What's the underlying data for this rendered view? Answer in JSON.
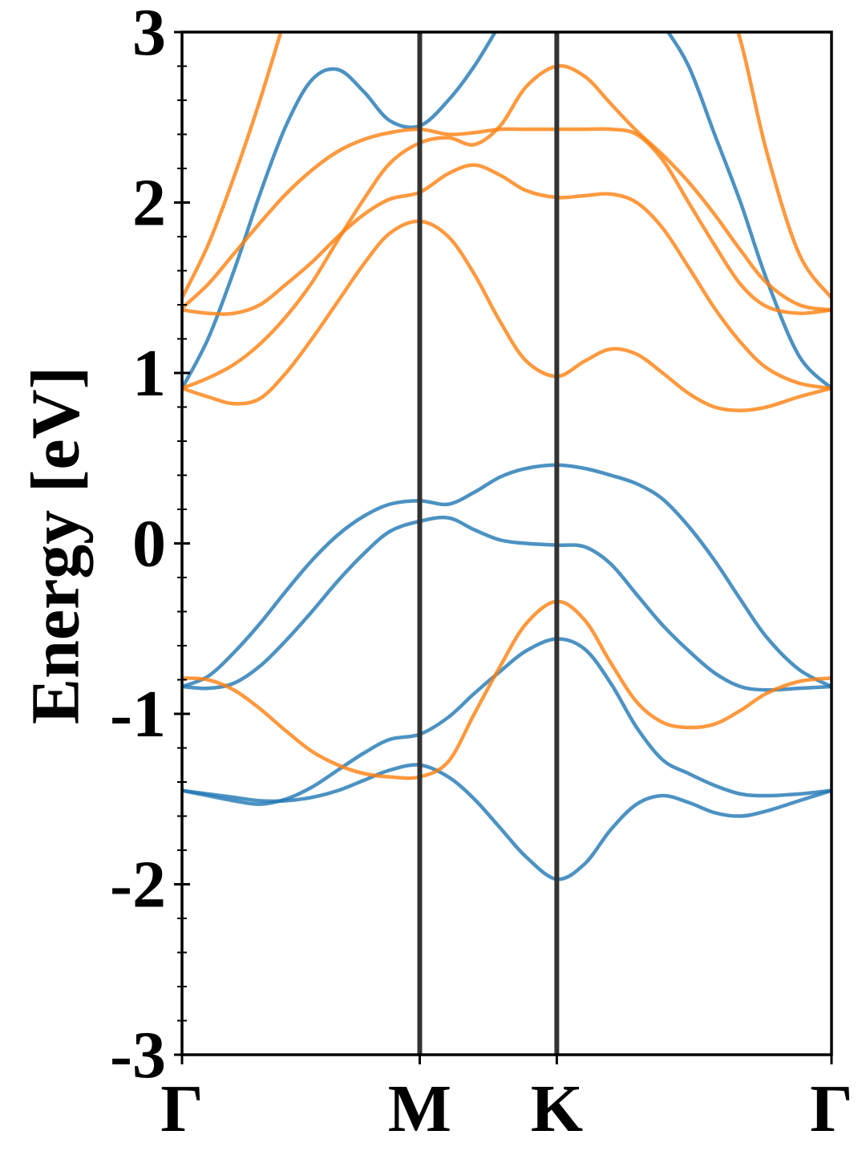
{
  "chart_data": {
    "type": "line",
    "ylabel": "Energy [eV]",
    "xlim": [
      0,
      1
    ],
    "xticks": [
      {
        "value": 0,
        "label": "Γ"
      },
      {
        "value": 0.366,
        "label": "M"
      },
      {
        "value": 0.577,
        "label": "K"
      },
      {
        "value": 1,
        "label": "Γ"
      }
    ],
    "ylim": [
      -3,
      3
    ],
    "yticks": [
      -3,
      -2,
      -1,
      0,
      1,
      2,
      3
    ],
    "yminorticks": [
      -2.8,
      -2.6,
      -2.4,
      -2.2,
      -1.8,
      -1.6,
      -1.4,
      -1.2,
      -0.8,
      -0.6,
      -0.4,
      -0.2,
      0.2,
      0.4,
      0.6,
      0.8,
      1.2,
      1.4,
      1.6,
      1.8,
      2.2,
      2.4,
      2.6,
      2.8
    ],
    "x": [
      0,
      0.04,
      0.08,
      0.12,
      0.16,
      0.2,
      0.24,
      0.28,
      0.32,
      0.366,
      0.41,
      0.45,
      0.49,
      0.53,
      0.577,
      0.62,
      0.66,
      0.7,
      0.74,
      0.78,
      0.82,
      0.86,
      0.9,
      0.95,
      1
    ],
    "series": [
      {
        "color": "#1f77b4",
        "values": [
          -1.45,
          -1.47,
          -1.49,
          -1.51,
          -1.51,
          -1.49,
          -1.45,
          -1.39,
          -1.33,
          -1.3,
          -1.37,
          -1.5,
          -1.67,
          -1.84,
          -1.97,
          -1.88,
          -1.68,
          -1.53,
          -1.48,
          -1.52,
          -1.58,
          -1.6,
          -1.57,
          -1.51,
          -1.45
        ]
      },
      {
        "color": "#1f77b4",
        "values": [
          -1.45,
          -1.48,
          -1.51,
          -1.53,
          -1.5,
          -1.43,
          -1.33,
          -1.23,
          -1.15,
          -1.12,
          -1.02,
          -0.88,
          -0.75,
          -0.63,
          -0.56,
          -0.62,
          -0.82,
          -1.08,
          -1.27,
          -1.35,
          -1.42,
          -1.47,
          -1.48,
          -1.47,
          -1.45
        ]
      },
      {
        "color": "#1f77b4",
        "values": [
          -0.84,
          -0.85,
          -0.82,
          -0.72,
          -0.57,
          -0.4,
          -0.22,
          -0.06,
          0.07,
          0.13,
          0.15,
          0.08,
          0.02,
          0.0,
          -0.01,
          -0.02,
          -0.12,
          -0.3,
          -0.48,
          -0.63,
          -0.76,
          -0.84,
          -0.86,
          -0.85,
          -0.84
        ]
      },
      {
        "color": "#1f77b4",
        "values": [
          -0.84,
          -0.78,
          -0.64,
          -0.47,
          -0.28,
          -0.1,
          0.05,
          0.16,
          0.23,
          0.25,
          0.23,
          0.3,
          0.39,
          0.44,
          0.46,
          0.44,
          0.4,
          0.35,
          0.26,
          0.1,
          -0.1,
          -0.33,
          -0.55,
          -0.74,
          -0.84
        ]
      },
      {
        "color": "#1f77b4",
        "values": [
          0.91,
          1.2,
          1.6,
          2.05,
          2.45,
          2.72,
          2.78,
          2.65,
          2.48,
          2.45,
          2.6,
          2.8,
          3.05,
          3.3,
          3.5,
          3.6,
          3.55,
          3.3,
          3.05,
          2.8,
          2.4,
          2.0,
          1.55,
          1.1,
          0.91
        ]
      },
      {
        "color": "#ff7f0e",
        "values": [
          -0.79,
          -0.8,
          -0.86,
          -0.97,
          -1.1,
          -1.22,
          -1.3,
          -1.35,
          -1.37,
          -1.37,
          -1.28,
          -1.0,
          -0.72,
          -0.47,
          -0.34,
          -0.45,
          -0.7,
          -0.93,
          -1.05,
          -1.08,
          -1.06,
          -0.98,
          -0.88,
          -0.81,
          -0.79
        ]
      },
      {
        "color": "#ff7f0e",
        "values": [
          0.91,
          0.86,
          0.82,
          0.85,
          1.0,
          1.2,
          1.42,
          1.64,
          1.82,
          1.89,
          1.8,
          1.58,
          1.3,
          1.07,
          0.98,
          1.07,
          1.14,
          1.11,
          1.0,
          0.88,
          0.8,
          0.78,
          0.8,
          0.86,
          0.91
        ]
      },
      {
        "color": "#ff7f0e",
        "values": [
          0.91,
          0.97,
          1.05,
          1.17,
          1.33,
          1.53,
          1.78,
          2.02,
          2.23,
          2.35,
          2.38,
          2.34,
          2.45,
          2.68,
          2.8,
          2.74,
          2.58,
          2.42,
          2.28,
          2.12,
          1.93,
          1.72,
          1.53,
          1.4,
          1.37
        ]
      },
      {
        "color": "#ff7f0e",
        "values": [
          1.37,
          1.35,
          1.35,
          1.4,
          1.52,
          1.65,
          1.8,
          1.93,
          2.02,
          2.06,
          2.17,
          2.22,
          2.16,
          2.07,
          2.03,
          2.04,
          2.05,
          2.0,
          1.85,
          1.62,
          1.38,
          1.18,
          1.03,
          0.94,
          0.91
        ]
      },
      {
        "color": "#ff7f0e",
        "values": [
          1.38,
          1.52,
          1.7,
          1.88,
          2.05,
          2.19,
          2.3,
          2.37,
          2.41,
          2.43,
          2.4,
          2.41,
          2.43,
          2.43,
          2.43,
          2.43,
          2.43,
          2.4,
          2.25,
          2.0,
          1.75,
          1.52,
          1.39,
          1.35,
          1.37
        ]
      },
      {
        "color": "#ff7f0e",
        "values": [
          1.44,
          1.75,
          2.15,
          2.6,
          3.1,
          null,
          null,
          null,
          null,
          null,
          null,
          null,
          null,
          null,
          null,
          null,
          null,
          null,
          null,
          null,
          3.4,
          2.95,
          2.3,
          1.7,
          1.44
        ]
      }
    ]
  }
}
